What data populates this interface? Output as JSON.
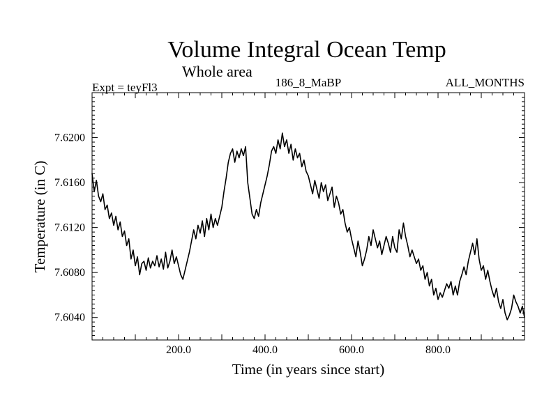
{
  "chart_data": {
    "type": "line",
    "title": "Volume Integral Ocean Temp",
    "subtitle": "Whole area",
    "experiment_label": "Expt = teyFl3",
    "run_label": "186_8_MaBP",
    "period_label": "ALL_MONTHS",
    "xlabel": "Time (in years since start)",
    "ylabel": "Temperature (in C)",
    "xlim": [
      0,
      1000
    ],
    "ylim": [
      7.602,
      7.624
    ],
    "xticks": [
      200,
      400,
      600,
      800
    ],
    "xtick_labels": [
      "200.0",
      "400.0",
      "600.0",
      "800.0"
    ],
    "yticks": [
      7.604,
      7.608,
      7.612,
      7.616,
      7.62
    ],
    "ytick_labels": [
      "7.6040",
      "7.6080",
      "7.6120",
      "7.6160",
      "7.6200"
    ],
    "grid": false,
    "series": [
      {
        "name": "Volume integral ocean temperature",
        "color": "#000000",
        "x": [
          0,
          5,
          10,
          15,
          20,
          25,
          30,
          35,
          40,
          45,
          50,
          55,
          60,
          65,
          70,
          75,
          80,
          85,
          90,
          95,
          100,
          105,
          110,
          115,
          120,
          125,
          130,
          135,
          140,
          145,
          150,
          155,
          160,
          165,
          170,
          175,
          180,
          185,
          190,
          195,
          200,
          205,
          210,
          215,
          220,
          225,
          230,
          235,
          240,
          245,
          250,
          255,
          260,
          265,
          270,
          275,
          280,
          285,
          290,
          295,
          300,
          305,
          310,
          315,
          320,
          325,
          330,
          335,
          340,
          345,
          350,
          355,
          360,
          365,
          370,
          375,
          380,
          385,
          390,
          395,
          400,
          405,
          410,
          415,
          420,
          425,
          430,
          435,
          440,
          445,
          450,
          455,
          460,
          465,
          470,
          475,
          480,
          485,
          490,
          495,
          500,
          505,
          510,
          515,
          520,
          525,
          530,
          535,
          540,
          545,
          550,
          555,
          560,
          565,
          570,
          575,
          580,
          585,
          590,
          595,
          600,
          605,
          610,
          615,
          620,
          625,
          630,
          635,
          640,
          645,
          650,
          655,
          660,
          665,
          670,
          675,
          680,
          685,
          690,
          695,
          700,
          705,
          710,
          715,
          720,
          725,
          730,
          735,
          740,
          745,
          750,
          755,
          760,
          765,
          770,
          775,
          780,
          785,
          790,
          795,
          800,
          805,
          810,
          815,
          820,
          825,
          830,
          835,
          840,
          845,
          850,
          855,
          860,
          865,
          870,
          875,
          880,
          885,
          890,
          895,
          900,
          905,
          910,
          915,
          920,
          925,
          930,
          935,
          940,
          945,
          950,
          955,
          960,
          965,
          970,
          975,
          980,
          985,
          990,
          995,
          1000
        ],
        "values": [
          7.6168,
          7.6152,
          7.6162,
          7.6148,
          7.6143,
          7.615,
          7.6136,
          7.614,
          7.6128,
          7.6133,
          7.6122,
          7.613,
          7.6118,
          7.6125,
          7.6112,
          7.6117,
          7.6104,
          7.611,
          7.6092,
          7.61,
          7.6086,
          7.6094,
          7.6078,
          7.6088,
          7.609,
          7.6082,
          7.6093,
          7.6084,
          7.609,
          7.6086,
          7.6095,
          7.6085,
          7.6092,
          7.6083,
          7.6098,
          7.6084,
          7.609,
          7.61,
          7.6088,
          7.6094,
          7.6086,
          7.6078,
          7.6074,
          7.6082,
          7.609,
          7.6098,
          7.6108,
          7.6118,
          7.611,
          7.6122,
          7.6115,
          7.6126,
          7.6112,
          7.6128,
          7.6118,
          7.6132,
          7.612,
          7.6128,
          7.6122,
          7.613,
          7.6138,
          7.6152,
          7.6164,
          7.6178,
          7.6186,
          7.619,
          7.6178,
          7.6188,
          7.6182,
          7.619,
          7.6184,
          7.6192,
          7.616,
          7.6146,
          7.6132,
          7.6128,
          7.6136,
          7.613,
          7.6142,
          7.615,
          7.6158,
          7.6166,
          7.6176,
          7.6188,
          7.6192,
          7.6186,
          7.6198,
          7.619,
          7.6204,
          7.6192,
          7.6198,
          7.6186,
          7.6194,
          7.618,
          7.619,
          7.6182,
          7.6186,
          7.6174,
          7.618,
          7.617,
          7.6166,
          7.6158,
          7.615,
          7.6162,
          7.6154,
          7.6146,
          7.616,
          7.6152,
          7.6158,
          7.6144,
          7.615,
          7.6156,
          7.6138,
          7.6148,
          7.6142,
          7.6132,
          7.6136,
          7.6124,
          7.6116,
          7.612,
          7.611,
          7.6102,
          7.6094,
          7.6108,
          7.6098,
          7.6086,
          7.6092,
          7.61,
          7.6112,
          7.6104,
          7.6118,
          7.611,
          7.6102,
          7.6108,
          7.6096,
          7.6104,
          7.6112,
          7.6106,
          7.6098,
          7.6112,
          7.6102,
          7.6098,
          7.6118,
          7.611,
          7.6124,
          7.6112,
          7.6104,
          7.6094,
          7.61,
          7.6094,
          7.6088,
          7.6092,
          7.6082,
          7.6086,
          7.6074,
          7.608,
          7.6068,
          7.6074,
          7.606,
          7.6066,
          7.6056,
          7.6062,
          7.6058,
          7.6064,
          7.607,
          7.6066,
          7.6072,
          7.606,
          7.6068,
          7.606,
          7.6072,
          7.6078,
          7.6085,
          7.6078,
          7.609,
          7.6098,
          7.6106,
          7.6096,
          7.611,
          7.6092,
          7.6082,
          7.6086,
          7.6074,
          7.6082,
          7.6072,
          7.6064,
          7.6058,
          7.6066,
          7.6054,
          7.6048,
          7.6056,
          7.6044,
          7.6038,
          7.6042,
          7.6048,
          7.606,
          7.6054,
          7.605,
          7.6044,
          7.605,
          7.604
        ]
      }
    ]
  }
}
